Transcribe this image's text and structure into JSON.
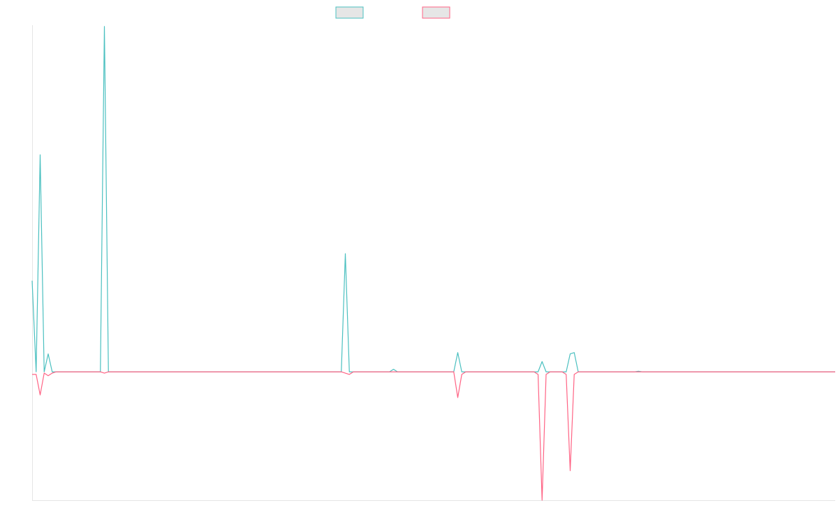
{
  "colors": {
    "teal": "#4bc0c0",
    "pink": "#ff6384",
    "axis": "#e5e5e5",
    "legend_fill": "#e6e6e6"
  },
  "chart_data": {
    "type": "line",
    "title": "",
    "xlabel": "",
    "ylabel": "",
    "grid": false,
    "legend_position": "top-center",
    "x": [
      0,
      0.5,
      1,
      1.5,
      2,
      2.5,
      3,
      3.5,
      4,
      4.5,
      5,
      5.5,
      6,
      6.5,
      7,
      7.5,
      8,
      8.5,
      9,
      9.5,
      10,
      10.5,
      11,
      11.5,
      12,
      12.5,
      13,
      13.5,
      14,
      14.5,
      15,
      15.5,
      16,
      16.5,
      17,
      17.5,
      18,
      18.5,
      19,
      19.5,
      20,
      20.5,
      21,
      21.5,
      22,
      22.5,
      23,
      23.5,
      24,
      24.5,
      25,
      25.5,
      26,
      26.5,
      27,
      27.5,
      28,
      28.5,
      29,
      29.5,
      30,
      30.5,
      31,
      31.5,
      32,
      32.5,
      33,
      33.5,
      34,
      34.5,
      35,
      35.5,
      36,
      36.5,
      37,
      37.5,
      38,
      38.5,
      39,
      39.5,
      40,
      40.5,
      41,
      41.5,
      42,
      42.5,
      43,
      43.5,
      44,
      44.5,
      45,
      45.5,
      46,
      46.5,
      47,
      47.5,
      48,
      48.5,
      49,
      49.5,
      50,
      50.5,
      51,
      51.5,
      52,
      52.5,
      53,
      53.5,
      54,
      54.5,
      55,
      55.5,
      56,
      56.5,
      57,
      57.5,
      58,
      58.5,
      59,
      59.5,
      60,
      60.5,
      61,
      61.5,
      62,
      62.5,
      63,
      63.5,
      64,
      64.5,
      65,
      65.5,
      66,
      66.5,
      67,
      67.5,
      68,
      68.5,
      69,
      69.5,
      70,
      70.5,
      71,
      71.5,
      72,
      72.5,
      73,
      73.5,
      74,
      74.5,
      75,
      75.5,
      76,
      76.5,
      77,
      77.5,
      78,
      78.5,
      79,
      79.5,
      80,
      80.5,
      81,
      81.5,
      82,
      82.5,
      83,
      83.5,
      84,
      84.5,
      85,
      85.5,
      86,
      86.5,
      87,
      87.5,
      88,
      88.5,
      89,
      89.5,
      90,
      90.5,
      91,
      91.5,
      92,
      92.5,
      93,
      93.5,
      94,
      94.5,
      95,
      95.5,
      96,
      96.5,
      97,
      97.5,
      98,
      98.5,
      99,
      99.5,
      100
    ],
    "ylim": [
      -100,
      270
    ],
    "series": [
      {
        "color": "#4bc0c0",
        "values": [
          71,
          0,
          169,
          0,
          14,
          0,
          0,
          0,
          0,
          0,
          0,
          0,
          0,
          0,
          0,
          0,
          0,
          0,
          269,
          0,
          0,
          0,
          0,
          0,
          0,
          0,
          0,
          0,
          0,
          0,
          0,
          0,
          0,
          0,
          0,
          0,
          0,
          0,
          0,
          0,
          0,
          0,
          0,
          0,
          0,
          0,
          0,
          0,
          0,
          0,
          0,
          0,
          0,
          0,
          0,
          0,
          0,
          0,
          0,
          0,
          0,
          0,
          0,
          0,
          0,
          0,
          0,
          0,
          0,
          0,
          0,
          0,
          0,
          0,
          0,
          0,
          0,
          0,
          0,
          0,
          0,
          0,
          0,
          0,
          0,
          0,
          0,
          0,
          0,
          0,
          0,
          0,
          0,
          0,
          0,
          0,
          0,
          0,
          0,
          0,
          0,
          0,
          0,
          0,
          0,
          0,
          0,
          0,
          0,
          0,
          0,
          0,
          0,
          0,
          0,
          0,
          0,
          0,
          0,
          0,
          0,
          0,
          0,
          0,
          0,
          0,
          0,
          0,
          0,
          0,
          0,
          0,
          0,
          0,
          0,
          0,
          0,
          0,
          0,
          0,
          0,
          0,
          0,
          0,
          0,
          0,
          0,
          0,
          0,
          0,
          0,
          0,
          0,
          0,
          0,
          0,
          0,
          0,
          0,
          0,
          0,
          0,
          0,
          0,
          0,
          0,
          0,
          0,
          0,
          0,
          0,
          0,
          0,
          0,
          0,
          0,
          0,
          0,
          0,
          0,
          0,
          0,
          0,
          0,
          0,
          0,
          0,
          0,
          0,
          0,
          0,
          0,
          0,
          0,
          0,
          0,
          0,
          0,
          0,
          0,
          0
        ],
        "overrides": [
          [
            64,
            0
          ],
          [
            78,
            92
          ],
          [
            79,
            0
          ],
          [
            90,
            2
          ],
          [
            92,
            0
          ],
          [
            104,
            0
          ],
          [
            106,
            15
          ],
          [
            107,
            0
          ],
          [
            126,
            0
          ],
          [
            127,
            8
          ],
          [
            128,
            0
          ],
          [
            133,
            0
          ],
          [
            134,
            14
          ],
          [
            135,
            15
          ],
          [
            136,
            0
          ],
          [
            150,
            0
          ],
          [
            151,
            0.5
          ]
        ]
      },
      {
        "color": "#ff6384",
        "values": [
          -2,
          -2,
          -18,
          -1,
          -3,
          -1,
          0,
          0,
          0,
          0,
          0,
          0,
          0,
          0,
          0,
          0,
          0,
          0,
          0,
          0,
          0,
          0,
          0,
          0,
          0,
          0,
          0,
          0,
          0,
          0,
          0,
          0,
          0,
          0,
          0,
          0,
          0,
          0,
          0,
          0,
          0,
          0,
          0,
          0,
          0,
          0,
          0,
          0,
          0,
          0,
          0,
          0,
          0,
          0,
          0,
          0,
          0,
          0,
          0,
          0,
          0,
          0,
          0,
          0,
          0,
          0,
          0,
          0,
          0,
          0,
          0,
          0,
          0,
          0,
          0,
          0,
          0,
          0,
          0,
          0,
          0,
          0,
          0,
          0,
          0,
          0,
          0,
          0,
          0,
          0,
          0,
          0,
          0,
          0,
          0,
          0,
          0,
          0,
          0,
          0,
          0,
          0,
          0,
          0,
          0,
          0,
          0,
          0,
          0,
          0,
          0,
          0,
          0,
          0,
          0,
          0,
          0,
          0,
          0,
          0,
          0,
          0,
          0,
          0,
          0,
          0,
          0,
          0,
          0,
          0,
          0,
          0,
          0,
          0,
          0,
          0,
          0,
          0,
          0,
          0,
          0,
          0,
          0,
          0,
          0,
          0,
          0,
          0,
          0,
          0,
          0,
          0,
          0,
          0,
          0,
          0,
          0,
          0,
          0,
          0,
          0,
          0,
          0,
          0,
          0,
          0,
          0,
          0,
          0,
          0,
          0,
          0,
          0,
          0,
          0,
          0,
          0,
          0,
          0,
          0,
          0,
          0,
          0,
          0,
          0,
          0,
          0,
          0,
          0,
          0,
          0,
          0,
          0,
          0,
          0,
          0,
          0,
          0,
          0,
          0,
          0
        ],
        "overrides": [
          [
            18,
            -1
          ],
          [
            78,
            -1
          ],
          [
            79,
            -2
          ],
          [
            105,
            0
          ],
          [
            106,
            -20
          ],
          [
            107,
            -2
          ],
          [
            126,
            -2
          ],
          [
            127,
            -100
          ],
          [
            128,
            -2
          ],
          [
            133,
            -2
          ],
          [
            134,
            -77
          ],
          [
            135,
            -2
          ]
        ]
      }
    ]
  }
}
